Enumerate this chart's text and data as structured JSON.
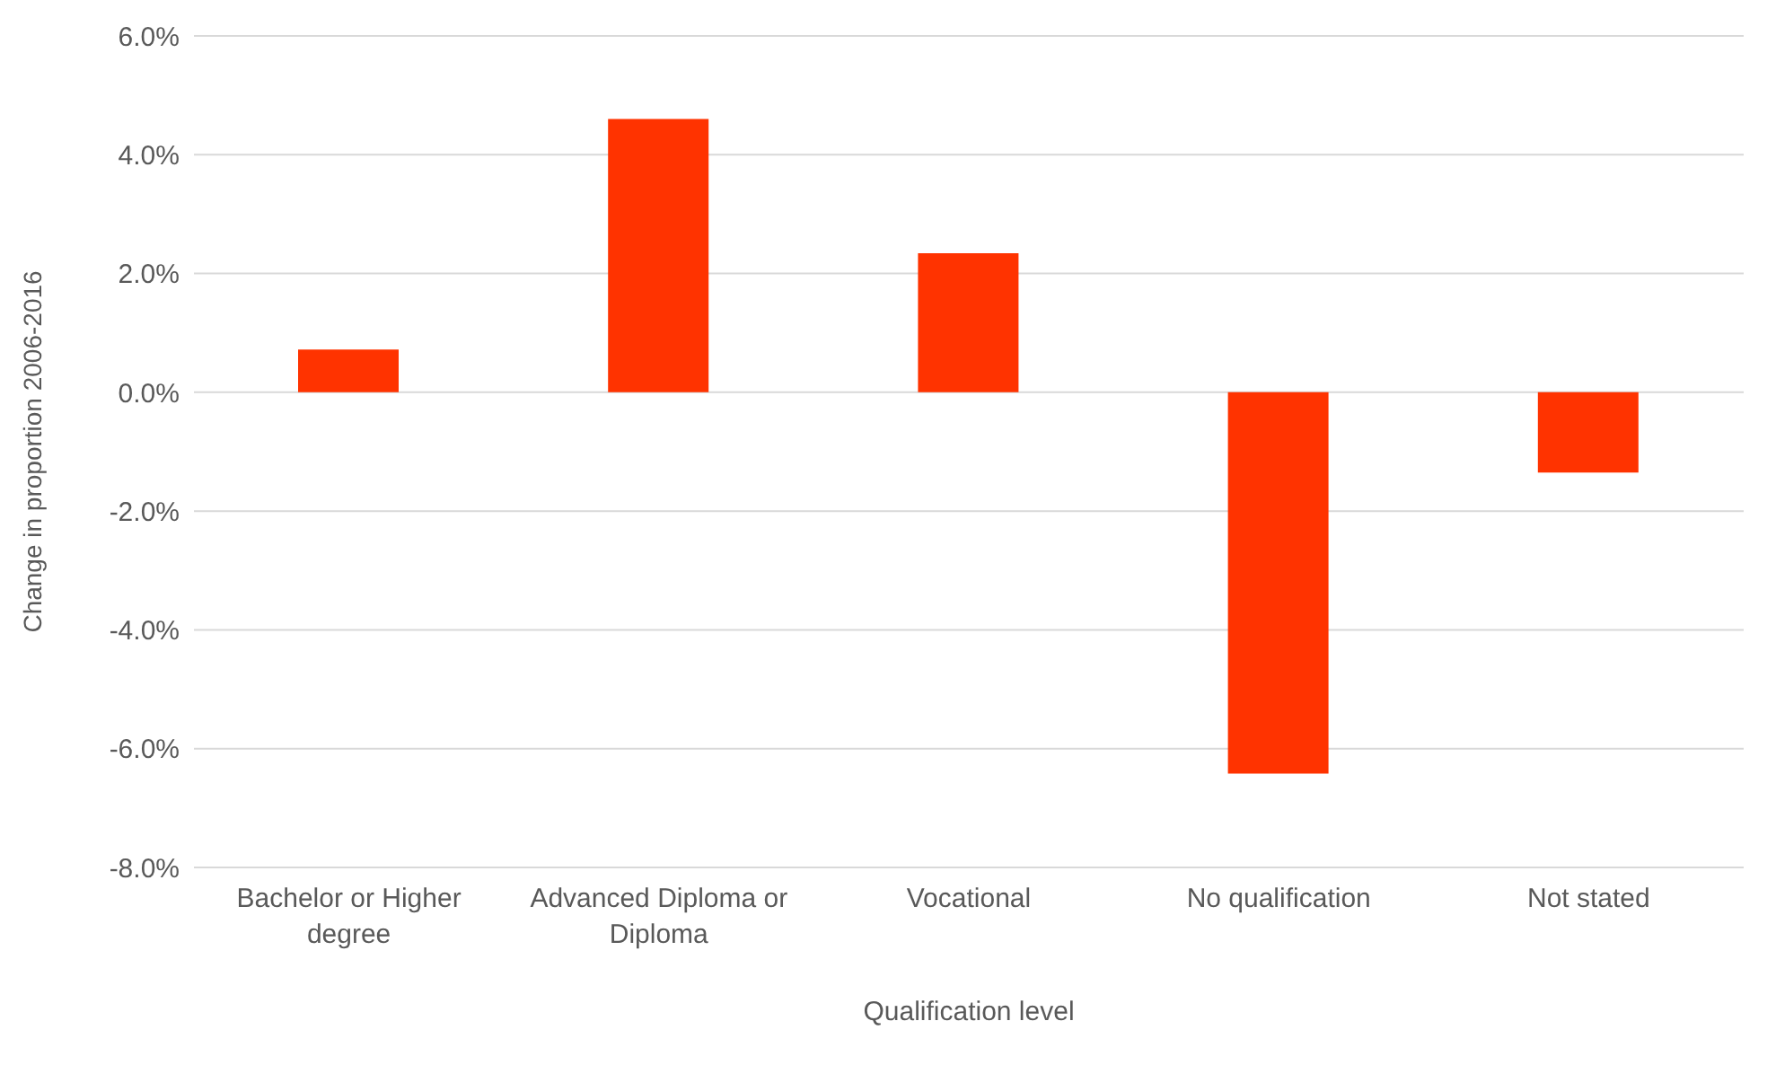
{
  "chart_data": {
    "type": "bar",
    "xlabel": "Qualification level",
    "ylabel": "Change in proportion 2006-2016",
    "categories": [
      "Bachelor or Higher degree",
      "Advanced Diploma or Diploma",
      "Vocational",
      "No qualification",
      "Not stated"
    ],
    "values": [
      0.72,
      4.6,
      2.34,
      -6.42,
      -1.35
    ],
    "color": "#ff3300",
    "ylim": [
      -8,
      6
    ],
    "yticks": [
      {
        "value": -8,
        "label": "-8.0%"
      },
      {
        "value": -6,
        "label": "-6.0%"
      },
      {
        "value": -4,
        "label": "-4.0%"
      },
      {
        "value": -2,
        "label": "-2.0%"
      },
      {
        "value": 0,
        "label": "0.0%"
      },
      {
        "value": 2,
        "label": "2.0%"
      },
      {
        "value": 4,
        "label": "4.0%"
      },
      {
        "value": 6,
        "label": "6.0%"
      }
    ],
    "grid": "y",
    "legend": false
  }
}
